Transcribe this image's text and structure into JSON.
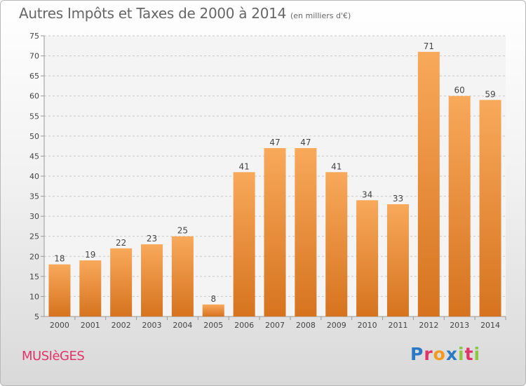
{
  "header": {
    "title": "Autres Impôts et Taxes de 2000 à 2014",
    "subtitle": "(en milliers d'€)"
  },
  "commune": {
    "name": "MUSIèGES"
  },
  "logo": {
    "text": "Proxiti",
    "letters": [
      {
        "char": "P",
        "color": "#2b78c5"
      },
      {
        "char": "r",
        "color": "#e0336a"
      },
      {
        "char": "o",
        "color": "#f39a1e"
      },
      {
        "char": "x",
        "color": "#2b78c5"
      },
      {
        "char": "i",
        "color": "#8dc63f"
      },
      {
        "char": "t",
        "color": "#e0336a"
      },
      {
        "char": "i",
        "color": "#8dc63f"
      }
    ]
  },
  "chart_data": {
    "type": "bar",
    "title": "Autres Impôts et Taxes de 2000 à 2014",
    "subtitle": "(en milliers d'€)",
    "categories": [
      "2000",
      "2001",
      "2002",
      "2003",
      "2004",
      "2005",
      "2006",
      "2007",
      "2008",
      "2009",
      "2010",
      "2011",
      "2012",
      "2013",
      "2014"
    ],
    "values": [
      18,
      19,
      22,
      23,
      25,
      8,
      41,
      47,
      47,
      41,
      34,
      33,
      71,
      60,
      59
    ],
    "ylim": [
      5,
      75
    ],
    "yticks": [
      5,
      10,
      15,
      20,
      25,
      30,
      35,
      40,
      45,
      50,
      55,
      60,
      65,
      70,
      75
    ],
    "grid": true,
    "bar_color_light": "#f8a95a",
    "bar_color_dark": "#d6731f",
    "axis_color": "#999999",
    "grid_color": "#c8c8c8",
    "text_color": "#444444"
  }
}
